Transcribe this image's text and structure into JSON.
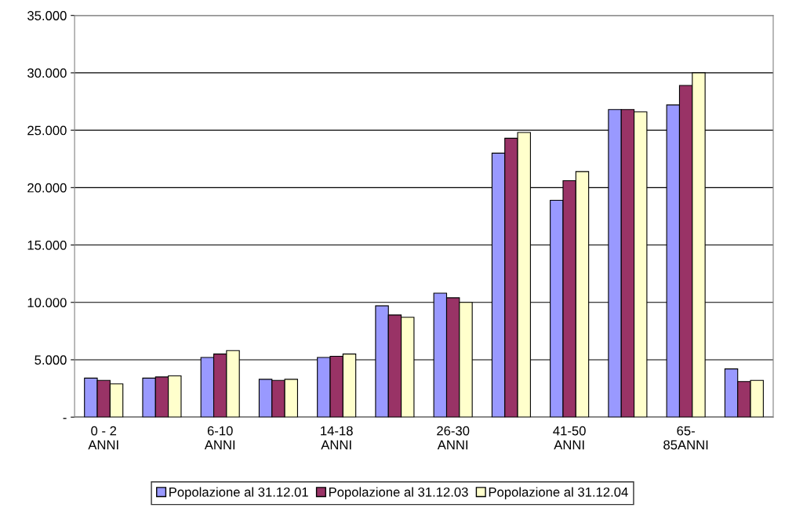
{
  "chart_data": {
    "type": "bar",
    "categories": [
      "0 - 2\nANNI",
      null,
      "6-10\nANNI",
      null,
      "14-18\nANNI",
      null,
      "26-30\nANNI",
      null,
      "41-50\nANNI",
      null,
      "65-\n85ANNI",
      null
    ],
    "series": [
      {
        "name": "Popolazione al 31.12.01",
        "color": "#9999ff",
        "values": [
          3400,
          3400,
          5200,
          3300,
          5200,
          9700,
          10800,
          23000,
          18900,
          26800,
          27200,
          4200
        ]
      },
      {
        "name": "Popolazione al 31.12.03",
        "color": "#993366",
        "values": [
          3200,
          3500,
          5500,
          3200,
          5300,
          8900,
          10400,
          24300,
          20600,
          26800,
          28900,
          3100
        ]
      },
      {
        "name": "Popolazione al 31.12.04",
        "color": "#ffffcc",
        "values": [
          2900,
          3600,
          5800,
          3300,
          5500,
          8700,
          10000,
          24800,
          21400,
          26600,
          30000,
          3200
        ]
      }
    ],
    "ylim": [
      0,
      35000
    ],
    "yticks": [
      {
        "value": 0,
        "label": "-"
      },
      {
        "value": 5000,
        "label": "5.000"
      },
      {
        "value": 10000,
        "label": "10.000"
      },
      {
        "value": 15000,
        "label": "15.000"
      },
      {
        "value": 20000,
        "label": "20.000"
      },
      {
        "value": 25000,
        "label": "25.000"
      },
      {
        "value": 30000,
        "label": "30.000"
      },
      {
        "value": 35000,
        "label": "35.000"
      }
    ],
    "grid": "y",
    "legend": "bottom"
  }
}
